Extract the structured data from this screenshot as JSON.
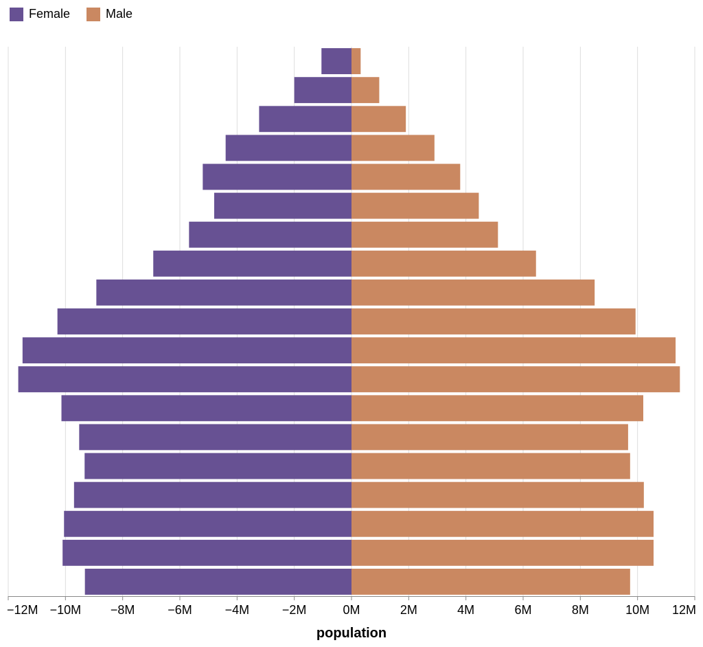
{
  "chart_data": {
    "type": "bar",
    "orientation": "horizontal",
    "xlabel": "population",
    "xlim": [
      -12000000,
      12000000
    ],
    "grid": true,
    "legend_position": "top-left",
    "x_ticks": [
      {
        "value": -12000000,
        "label": "−12M"
      },
      {
        "value": -10000000,
        "label": "−10M"
      },
      {
        "value": -8000000,
        "label": "−8M"
      },
      {
        "value": -6000000,
        "label": "−6M"
      },
      {
        "value": -4000000,
        "label": "−4M"
      },
      {
        "value": -2000000,
        "label": "−2M"
      },
      {
        "value": 0,
        "label": "0M"
      },
      {
        "value": 2000000,
        "label": "2M"
      },
      {
        "value": 4000000,
        "label": "4M"
      },
      {
        "value": 6000000,
        "label": "6M"
      },
      {
        "value": 8000000,
        "label": "8M"
      },
      {
        "value": 10000000,
        "label": "10M"
      },
      {
        "value": 12000000,
        "label": "12M"
      }
    ],
    "series": [
      {
        "name": "Female",
        "color": "#675193",
        "values": [
          -1050000,
          -2000000,
          -3230000,
          -4400000,
          -5200000,
          -4800000,
          -5680000,
          -6930000,
          -8920000,
          -10280000,
          -11500000,
          -11650000,
          -10140000,
          -9520000,
          -9330000,
          -9700000,
          -10050000,
          -10100000,
          -9320000
        ]
      },
      {
        "name": "Male",
        "color": "#ca8861",
        "values": [
          320000,
          970000,
          1900000,
          2900000,
          3800000,
          4450000,
          5120000,
          6450000,
          8500000,
          9930000,
          11330000,
          11480000,
          10200000,
          9670000,
          9740000,
          10220000,
          10560000,
          10560000,
          9740000
        ]
      }
    ]
  }
}
